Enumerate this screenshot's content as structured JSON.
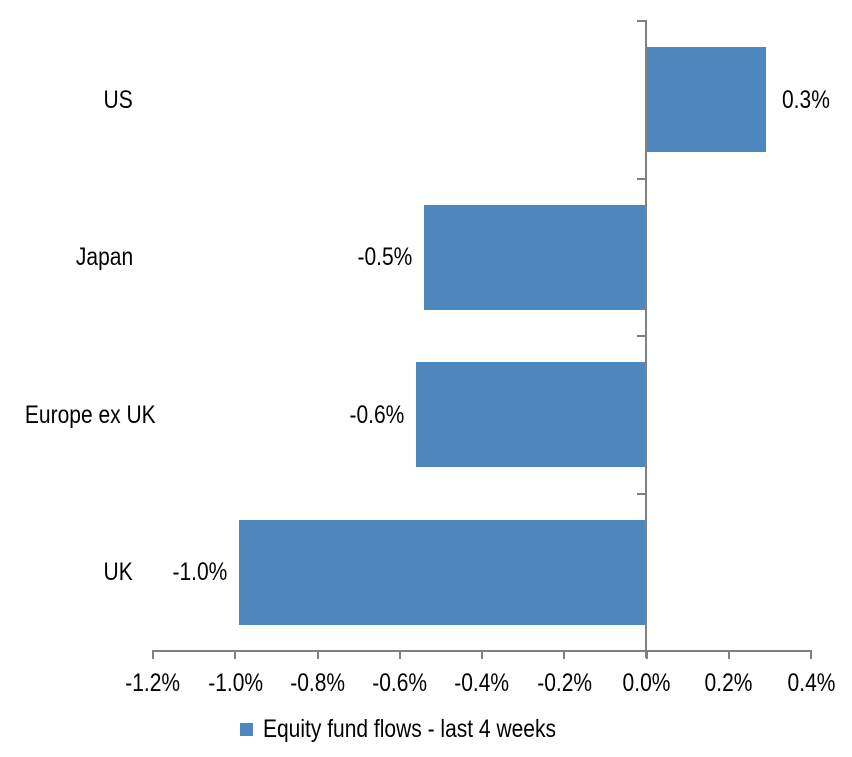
{
  "chart_data": {
    "type": "bar",
    "orientation": "horizontal",
    "title": "",
    "xlabel": "",
    "ylabel": "",
    "categories": [
      "US",
      "Japan",
      "Europe ex UK",
      "UK"
    ],
    "series": [
      {
        "name": "Equity fund flows - last 4 weeks",
        "values": [
          0.29,
          -0.54,
          -0.56,
          -0.99
        ],
        "data_labels": [
          "0.3%",
          "-0.5%",
          "-0.6%",
          "-1.0%"
        ]
      }
    ],
    "xlim": [
      -1.2,
      0.4
    ],
    "x_tick_values": [
      -1.2,
      -1.0,
      -0.8,
      -0.6,
      -0.4,
      -0.2,
      0.0,
      0.2,
      0.4
    ],
    "x_tick_labels": [
      "-1.2%",
      "-1.0%",
      "-0.8%",
      "-0.6%",
      "-0.4%",
      "-0.2%",
      "0.0%",
      "0.2%",
      "0.4%"
    ],
    "grid": false,
    "legend_position": "bottom",
    "colors": {
      "bar": "#4E86BE",
      "axis": "#808080",
      "text": "#000000",
      "background": "#FFFFFF"
    }
  },
  "legend": {
    "items": [
      {
        "label": "Equity fund flows - last 4 weeks",
        "swatch_color": "#4E86BE"
      }
    ]
  }
}
